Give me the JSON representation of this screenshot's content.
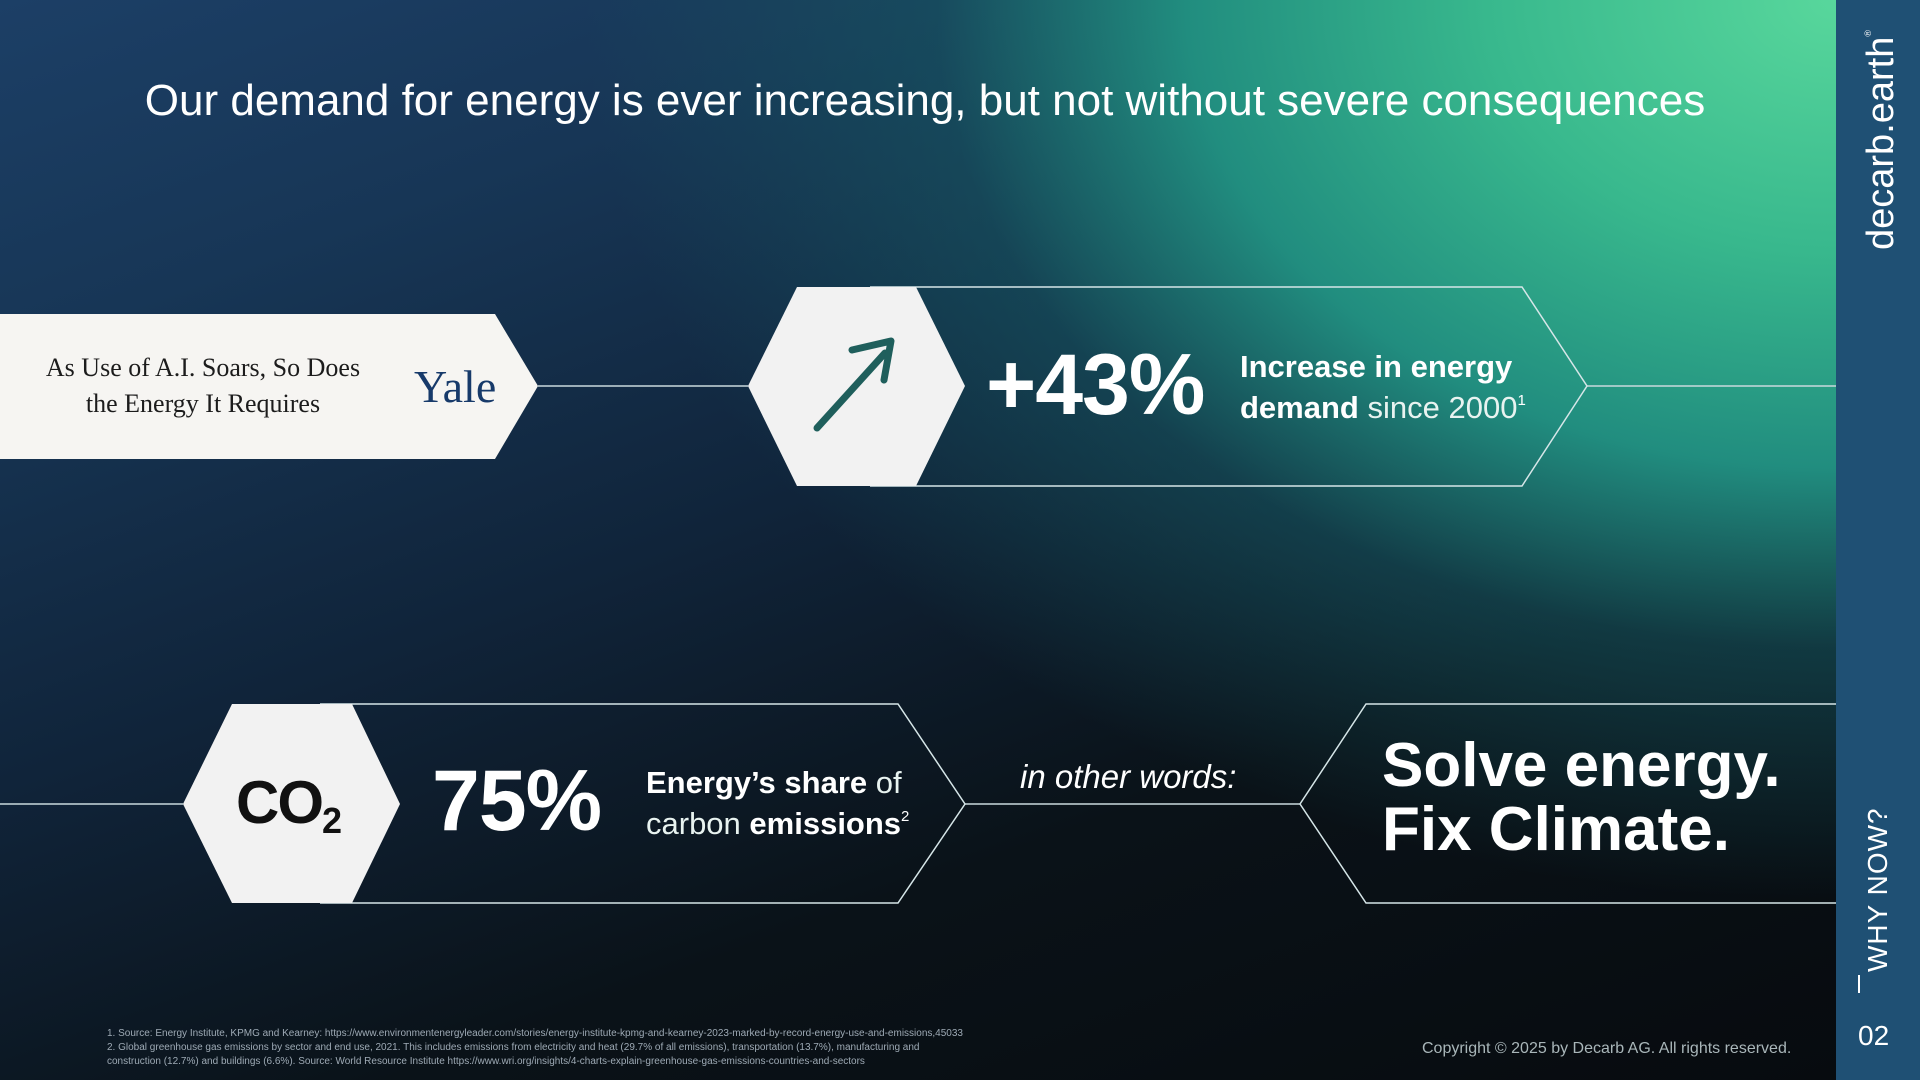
{
  "title": "Our demand for energy is ever increasing, but not without severe consequences",
  "news": {
    "headline": "As Use of A.I. Soars, So Does the Energy It Requires",
    "source": "Yale"
  },
  "stat_1": {
    "icon": "arrow-up-right-icon",
    "value": "+43%",
    "desc_bold": "Increase in energy demand",
    "desc_light": "since 2000",
    "footnote_ref": "1"
  },
  "stat_2": {
    "icon": "co2-icon",
    "icon_text": "CO",
    "icon_sub": "2",
    "value": "75%",
    "desc_bold_1": "Energy’s share",
    "desc_light_1": "of",
    "desc_light_2": "carbon",
    "desc_bold_2": "emissions",
    "footnote_ref": "2"
  },
  "connector": "in other words:",
  "conclusion": {
    "line1": "Solve energy.",
    "line2": "Fix Climate."
  },
  "footnotes": {
    "note1": "1. Source: Energy Institute, KPMG and Kearney: https://www.environmentenergyleader.com/stories/energy-institute-kpmg-and-kearney-2023-marked-by-record-energy-use-and-emissions,45033",
    "note2a": "2. Global greenhouse gas emissions by sector and end use, 2021. This includes emissions from electricity and heat (29.7% of all emissions), transportation (13.7%), manufacturing and",
    "note2b": "construction (12.7%) and buildings (6.6%). Source: World Resource Institute https://www.wri.org/insights/4-charts-explain-greenhouse-gas-emissions-countries-and-sectors"
  },
  "copyright": "Copyright © 2025 by Decarb AG. All rights reserved.",
  "sidebar": {
    "brand": "decarb.earth",
    "brand_mark": "®",
    "section": "WHY NOW?",
    "page": "02"
  },
  "colors": {
    "sidebar": "#1f5074",
    "accent_green": "#58d79c",
    "hex_fill": "#f2f2f2",
    "yale_blue": "#173a6a"
  }
}
